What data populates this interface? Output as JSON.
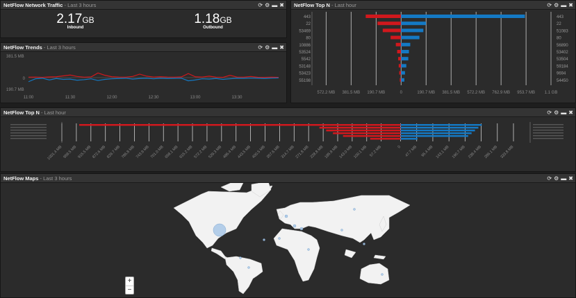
{
  "traffic": {
    "title": "NetFlow Network Traffic",
    "subtitle": " - Last 3 hours",
    "inbound_value": "2.17",
    "inbound_unit": "GB",
    "inbound_label": "Inbound",
    "outbound_value": "1.18",
    "outbound_unit": "GB",
    "outbound_label": "Outbound"
  },
  "trends": {
    "title": "NetFlow Trends",
    "subtitle": " - Last 3 hours"
  },
  "topn_small": {
    "title": "NetFlow Top N",
    "subtitle": " - Last hour"
  },
  "topn_wide": {
    "title": "NetFlow Top N",
    "subtitle": " - Last hour"
  },
  "maps": {
    "title": "NetFlow Maps",
    "subtitle": " - Last 3 hours",
    "zoom_in": "+",
    "zoom_out": "−"
  },
  "icons": {
    "refresh": "refresh-icon",
    "settings": "gear-icon",
    "minimize": "minimize-icon",
    "close": "close-icon"
  },
  "colors": {
    "inbound": "#d0181d",
    "outbound": "#1479c4",
    "land": "#f2f2f2",
    "bubble": "#a9c8e8"
  },
  "chart_data": [
    {
      "type": "line",
      "name": "NetFlow Trends",
      "x": [
        "11:00",
        "11:05",
        "11:10",
        "11:15",
        "11:20",
        "11:25",
        "11:30",
        "11:35",
        "11:40",
        "11:45",
        "11:50",
        "11:55",
        "12:00",
        "12:05",
        "12:10",
        "12:15",
        "12:20",
        "12:25",
        "12:30",
        "12:35",
        "12:40",
        "12:45",
        "12:50",
        "12:55",
        "13:00",
        "13:05",
        "13:10",
        "13:15",
        "13:20",
        "13:25",
        "13:30",
        "13:35",
        "13:40",
        "13:45",
        "13:50",
        "13:55",
        "14:00"
      ],
      "x_ticks": [
        "11:00",
        "11:30",
        "12:00",
        "12:30",
        "13:00",
        "13:30"
      ],
      "y_ticks": [
        "381.5 MB",
        "0",
        "190.7 MB"
      ],
      "ylim": [
        -190.7,
        381.5
      ],
      "series": [
        {
          "values": [
            8,
            10,
            5,
            12,
            15,
            30,
            45,
            20,
            8,
            12,
            80,
            40,
            15,
            10,
            8,
            20,
            60,
            25,
            10,
            15,
            10,
            8,
            12,
            70,
            15,
            10,
            25,
            8,
            5,
            40,
            10,
            8,
            20,
            6,
            5,
            8,
            5
          ]
        },
        {
          "values": [
            -70,
            -20,
            -10,
            -40,
            -15,
            -30,
            -25,
            -45,
            -35,
            -20,
            -50,
            -30,
            -20,
            -15,
            -10,
            -25,
            -15,
            -10,
            -20,
            -10,
            -15,
            -12,
            -10,
            -55,
            -40,
            -20,
            -25,
            -15,
            -30,
            -20,
            -10,
            -12,
            -8,
            -10,
            -15,
            -8,
            -5
          ]
        }
      ]
    },
    {
      "type": "bar",
      "name": "NetFlow Top N (small)",
      "categories": [
        "443",
        "22",
        "53469",
        "80",
        "10886",
        "53524",
        "5542",
        "53148",
        "53423",
        "55198"
      ],
      "right_categories": [
        "443",
        "22",
        "51083",
        "80",
        "56890",
        "53402",
        "53504",
        "59184",
        "9694",
        "54450"
      ],
      "series": [
        {
          "values": [
            270,
            180,
            140,
            80,
            40,
            30,
            22,
            18,
            14,
            10
          ]
        },
        {
          "values": [
            945,
            190,
            170,
            140,
            70,
            60,
            55,
            40,
            30,
            25
          ]
        }
      ],
      "x_ticks": [
        "572.2 MB",
        "381.5 MB",
        "190.7 MB",
        "0",
        "190.7 MB",
        "381.5 MB",
        "572.2 MB",
        "762.9 MB",
        "953.7 MB",
        "1.1 GB"
      ],
      "xlim": [
        -680,
        1144
      ]
    },
    {
      "type": "bar",
      "name": "NetFlow Top N (wide)",
      "series": [
        {
          "values": [
            950,
            240,
            220,
            200,
            170,
            90
          ]
        },
        {
          "values": [
            240,
            230,
            220,
            210,
            200,
            50
          ]
        }
      ],
      "x_ticks": [
        "1001.4 MB",
        "958.5 MB",
        "915.5 MB",
        "872.6 MB",
        "829.7 MB",
        "786.8 MB",
        "743.9 MB",
        "701.0 MB",
        "658.1 MB",
        "615.2 MB",
        "572.2 MB",
        "529.3 MB",
        "486.4 MB",
        "443.5 MB",
        "400.5 MB",
        "357.6 MB",
        "314.7 MB",
        "271.8 MB",
        "228.8 MB",
        "185.9 MB",
        "143.0 MB",
        "100.1 MB",
        "57.2 MB",
        "0",
        "47.7 MB",
        "95.4 MB",
        "143.1 MB",
        "190.7 MB",
        "238.4 MB",
        "286.1 MB",
        "333.8 MB"
      ],
      "xlim": [
        -1001.4,
        333.8
      ]
    }
  ],
  "map": {
    "land": [
      [
        [
          250,
          300
        ],
        [
          270,
          290
        ],
        [
          290,
          280
        ],
        [
          300,
          276
        ],
        [
          330,
          277
        ],
        [
          355,
          278
        ],
        [
          370,
          272
        ],
        [
          392,
          268
        ],
        [
          388,
          276
        ],
        [
          376,
          290
        ],
        [
          362,
          302
        ],
        [
          350,
          314
        ],
        [
          340,
          330
        ],
        [
          326,
          336
        ],
        [
          314,
          344
        ],
        [
          306,
          354
        ],
        [
          298,
          358
        ],
        [
          292,
          350
        ],
        [
          282,
          340
        ],
        [
          272,
          320
        ],
        [
          262,
          310
        ]
      ],
      [
        [
          318,
          270
        ],
        [
          332,
          264
        ],
        [
          350,
          264
        ],
        [
          345,
          274
        ],
        [
          330,
          276
        ]
      ],
      [
        [
          362,
          266
        ],
        [
          386,
          262
        ],
        [
          390,
          274
        ],
        [
          374,
          284
        ],
        [
          362,
          276
        ]
      ],
      [
        [
          305,
          358
        ],
        [
          318,
          362
        ],
        [
          324,
          370
        ],
        [
          328,
          372
        ],
        [
          324,
          374
        ],
        [
          312,
          366
        ],
        [
          304,
          362
        ]
      ],
      [
        [
          324,
          372
        ],
        [
          340,
          370
        ],
        [
          360,
          374
        ],
        [
          376,
          380
        ],
        [
          378,
          392
        ],
        [
          370,
          398
        ],
        [
          364,
          402
        ],
        [
          358,
          414
        ],
        [
          350,
          424
        ],
        [
          344,
          420
        ],
        [
          342,
          404
        ],
        [
          336,
          392
        ],
        [
          326,
          382
        ]
      ],
      [
        [
          398,
          302
        ],
        [
          410,
          300
        ],
        [
          418,
          296
        ],
        [
          432,
          292
        ],
        [
          450,
          292
        ],
        [
          480,
          290
        ],
        [
          520,
          282
        ],
        [
          560,
          282
        ],
        [
          590,
          296
        ],
        [
          574,
          306
        ],
        [
          560,
          314
        ],
        [
          560,
          330
        ],
        [
          548,
          342
        ],
        [
          538,
          346
        ],
        [
          534,
          336
        ],
        [
          524,
          346
        ],
        [
          518,
          350
        ],
        [
          508,
          344
        ],
        [
          492,
          340
        ],
        [
          472,
          334
        ],
        [
          454,
          328
        ],
        [
          444,
          326
        ],
        [
          434,
          330
        ],
        [
          424,
          330
        ],
        [
          418,
          324
        ],
        [
          410,
          322
        ],
        [
          402,
          316
        ]
      ],
      [
        [
          406,
          330
        ],
        [
          420,
          332
        ],
        [
          434,
          334
        ],
        [
          448,
          340
        ],
        [
          456,
          346
        ],
        [
          460,
          358
        ],
        [
          456,
          372
        ],
        [
          452,
          388
        ],
        [
          444,
          404
        ],
        [
          436,
          406
        ],
        [
          430,
          394
        ],
        [
          424,
          376
        ],
        [
          414,
          360
        ],
        [
          398,
          354
        ],
        [
          394,
          344
        ]
      ],
      [
        [
          520,
          388
        ],
        [
          532,
          382
        ],
        [
          546,
          380
        ],
        [
          558,
          388
        ],
        [
          560,
          404
        ],
        [
          548,
          410
        ],
        [
          530,
          408
        ],
        [
          518,
          402
        ]
      ],
      [
        [
          552,
          312
        ],
        [
          556,
          324
        ],
        [
          550,
          334
        ],
        [
          546,
          324
        ]
      ],
      [
        [
          403,
          304
        ],
        [
          408,
          310
        ],
        [
          404,
          316
        ],
        [
          400,
          310
        ]
      ],
      [
        [
          540,
          368
        ],
        [
          555,
          370
        ],
        [
          552,
          374
        ],
        [
          538,
          372
        ]
      ],
      [
        [
          498,
          360
        ],
        [
          512,
          364
        ],
        [
          506,
          372
        ],
        [
          496,
          368
        ]
      ]
    ],
    "bubbles": [
      [
        316,
        332,
        9
      ],
      [
        412,
        312,
        2
      ],
      [
        424,
        326,
        2
      ],
      [
        434,
        330,
        2
      ],
      [
        492,
        332,
        1.5
      ],
      [
        524,
        352,
        1.5
      ],
      [
        510,
        302,
        1.5
      ],
      [
        346,
        372,
        1.5
      ],
      [
        358,
        386,
        1.5
      ],
      [
        444,
        360,
        1.5
      ],
      [
        402,
        344,
        1.5
      ],
      [
        550,
        396,
        1.5
      ],
      [
        380,
        346,
        1.5
      ]
    ]
  }
}
